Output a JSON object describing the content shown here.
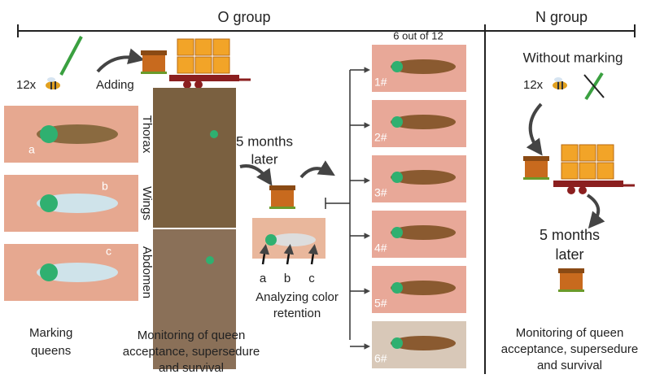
{
  "header": {
    "o_group": "O group",
    "n_group": "N group"
  },
  "o_group": {
    "count": "12x",
    "adding": "Adding",
    "sites": [
      {
        "label": "Thorax",
        "letter": "a"
      },
      {
        "label": "Wings",
        "letter": "b"
      },
      {
        "label": "Abdomen",
        "letter": "c"
      }
    ],
    "marking_label": [
      "Marking",
      "queens"
    ],
    "monitoring_label": [
      "Monitoring of queen",
      "acceptance, supersedure",
      "and survival"
    ],
    "delay_label": [
      "5 months",
      "later"
    ],
    "retention_letters": [
      "a",
      "b",
      "c"
    ],
    "retention_label": [
      "Analyzing color",
      "retention"
    ],
    "sample_label": "6 out of 12",
    "queens": [
      "1#",
      "2#",
      "3#",
      "4#",
      "5#",
      "6#"
    ]
  },
  "n_group": {
    "without_label": "Without marking",
    "count": "12x",
    "delay_label": [
      "5 months",
      "later"
    ],
    "monitoring_label": [
      "Monitoring of queen",
      "acceptance, supersedure",
      "and survival"
    ]
  }
}
